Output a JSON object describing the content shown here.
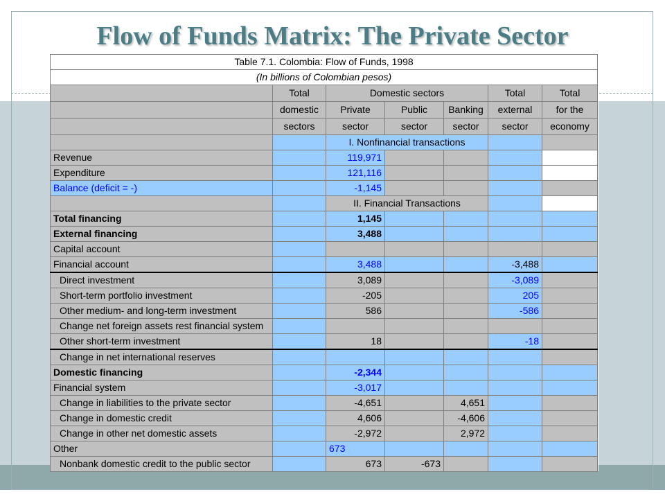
{
  "slide": {
    "title": "Flow of Funds Matrix: The Private Sector"
  },
  "table": {
    "title": "Table  7.1. Colombia: Flow of Funds, 1998",
    "subtitle": "(In billions of Colombian pesos)",
    "header": {
      "total_domestic": [
        "Total",
        "domestic",
        "sectors"
      ],
      "domestic_sectors": "Domestic sectors",
      "private": [
        "Private",
        "sector"
      ],
      "public": [
        "Public",
        "sector"
      ],
      "banking": [
        "Banking",
        "sector"
      ],
      "total_external": [
        "Total",
        "external",
        "sector"
      ],
      "total_economy": [
        "Total",
        "for the",
        "economy"
      ]
    },
    "section1": "I. Nonfinancial transactions",
    "section2": "II. Financial Transactions",
    "rows": [
      {
        "label": "Revenue",
        "private": "119,971"
      },
      {
        "label": "Expenditure",
        "private": "121,116"
      },
      {
        "label": "Balance (deficit = -)",
        "private": "-1,145"
      },
      {
        "label": "Total financing",
        "private": "1,145"
      },
      {
        "label": "External financing",
        "private": "3,488"
      },
      {
        "label": "Capital account"
      },
      {
        "label": "Financial account",
        "private": "3,488",
        "external": "-3,488"
      },
      {
        "label": "Direct investment",
        "private": "3,089",
        "external": "-3,089"
      },
      {
        "label": "Short-term portfolio investment",
        "private": "-205",
        "external": "205"
      },
      {
        "label": "Other medium- and long-term investment",
        "private": "586",
        "external": "-586"
      },
      {
        "label": "Change net foreign assets rest financial system"
      },
      {
        "label": "Other short-term investment",
        "private": "18",
        "external": "-18"
      },
      {
        "label": "Change in net international reserves"
      },
      {
        "label": "Domestic financing",
        "private": "-2,344"
      },
      {
        "label": "Financial system",
        "private": "-3,017"
      },
      {
        "label": "Change in liabilities to the private sector",
        "private": "-4,651",
        "banking": "4,651"
      },
      {
        "label": "Change in domestic credit",
        "private": "4,606",
        "banking": "-4,606"
      },
      {
        "label": "Change in other net domestic assets",
        "private": "-2,972",
        "banking": "2,972"
      },
      {
        "label": "Other",
        "private": "673"
      },
      {
        "label": "Nonbank domestic credit to the public sector",
        "private": "673",
        "public": "-673"
      }
    ]
  },
  "colors": {
    "title": "#4a7d86",
    "band": "#c6d3d8",
    "cell_gray": "#c0c0c0",
    "cell_blue": "#99ccff",
    "blue_text": "#0000ff"
  }
}
